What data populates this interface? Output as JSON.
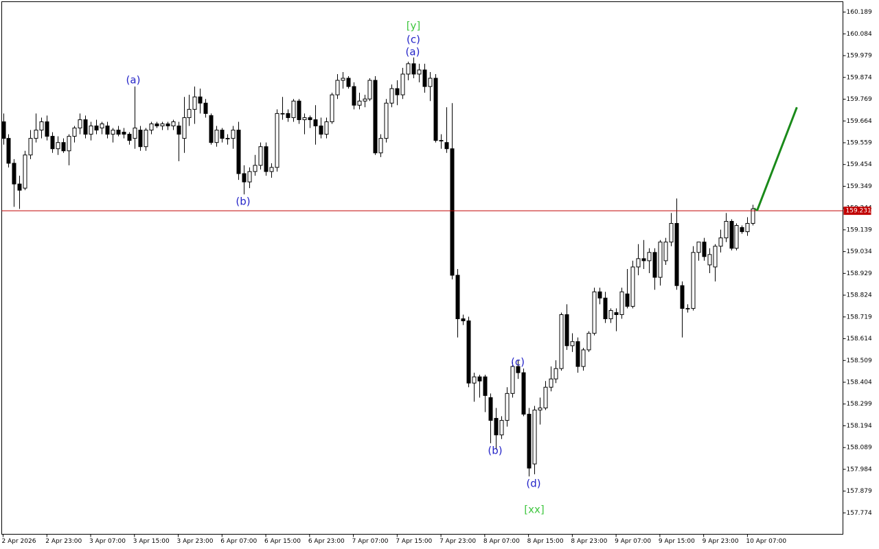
{
  "chart_data": {
    "type": "candlestick",
    "categories": [
      "2 Apr 2026",
      null,
      null,
      null,
      null,
      null,
      null,
      null,
      "2 Apr 23:00",
      null,
      null,
      null,
      null,
      null,
      null,
      null,
      "3 Apr 07:00",
      null,
      null,
      null,
      null,
      null,
      null,
      null,
      "3 Apr 15:00",
      null,
      null,
      null,
      null,
      null,
      null,
      null,
      "3 Apr 23:00",
      null,
      null,
      null,
      null,
      null,
      null,
      null,
      "6 Apr 07:00",
      null,
      null,
      null,
      null,
      null,
      null,
      null,
      "6 Apr 15:00",
      null,
      null,
      null,
      null,
      null,
      null,
      null,
      "6 Apr 23:00",
      null,
      null,
      null,
      null,
      null,
      null,
      null,
      "7 Apr 07:00",
      null,
      null,
      null,
      null,
      null,
      null,
      null,
      "7 Apr 15:00",
      null,
      null,
      null,
      null,
      null,
      null,
      null,
      "7 Apr 23:00",
      null,
      null,
      null,
      null,
      null,
      null,
      null,
      "8 Apr 07:00",
      null,
      null,
      null,
      null,
      null,
      null,
      null,
      "8 Apr 15:00",
      null,
      null,
      null,
      null,
      null,
      null,
      null,
      "8 Apr 23:00",
      null,
      null,
      null,
      null,
      null,
      null,
      null,
      "9 Apr 07:00",
      null,
      null,
      null,
      null,
      null,
      null,
      null,
      "9 Apr 15:00",
      null,
      null,
      null,
      null,
      null,
      null,
      null,
      "9 Apr 23:00",
      null,
      null,
      null,
      null,
      null,
      null,
      null,
      "10 Apr 07:00",
      null
    ],
    "open": [
      159.66,
      159.58,
      159.46,
      159.36,
      159.34,
      159.5,
      159.58,
      159.62,
      159.66,
      159.59,
      159.53,
      159.56,
      159.52,
      159.59,
      159.63,
      159.67,
      159.6,
      159.64,
      159.63,
      159.64,
      159.6,
      159.62,
      159.61,
      159.6,
      159.58,
      159.62,
      159.54,
      159.62,
      159.65,
      159.64,
      159.65,
      159.64,
      159.64,
      159.58,
      159.68,
      159.72,
      159.78,
      159.75,
      159.69,
      159.56,
      159.62,
      159.58,
      159.58,
      159.62,
      159.41,
      159.37,
      159.42,
      159.45,
      159.54,
      159.42,
      159.44,
      159.7,
      159.7,
      159.68,
      159.76,
      159.67,
      159.68,
      159.67,
      159.64,
      159.6,
      159.66,
      159.79,
      159.86,
      159.87,
      159.83,
      159.74,
      159.76,
      159.77,
      159.86,
      159.51,
      159.58,
      159.75,
      159.82,
      159.79,
      159.89,
      159.94,
      159.89,
      159.91,
      159.83,
      159.87,
      159.57,
      159.56,
      159.53,
      158.92,
      158.71,
      158.7,
      158.4,
      158.43,
      158.43,
      158.33,
      158.23,
      158.15,
      158.22,
      158.35,
      158.48,
      158.45,
      158.25,
      158.01,
      158.27,
      158.28,
      158.38,
      158.42,
      158.47,
      158.73,
      158.58,
      158.6,
      158.48,
      158.56,
      158.64,
      158.84,
      158.81,
      158.71,
      158.74,
      158.73,
      158.83,
      158.77,
      158.96,
      159.0,
      158.99,
      159.03,
      158.91,
      158.99,
      159.08,
      159.17,
      158.87,
      158.76,
      158.76,
      159.03,
      159.08,
      158.97,
      158.96,
      159.06,
      159.1,
      159.18,
      159.05,
      159.15,
      159.13,
      159.17
    ],
    "high": [
      159.7,
      159.6,
      159.48,
      159.4,
      159.52,
      159.62,
      159.7,
      159.68,
      159.69,
      159.61,
      159.59,
      159.58,
      159.6,
      159.64,
      159.7,
      159.69,
      159.66,
      159.67,
      159.66,
      159.66,
      159.63,
      159.64,
      159.63,
      159.61,
      159.83,
      159.64,
      159.63,
      159.66,
      159.66,
      159.66,
      159.66,
      159.67,
      159.66,
      159.78,
      159.79,
      159.83,
      159.82,
      159.77,
      159.7,
      159.64,
      159.63,
      159.6,
      159.64,
      159.66,
      159.45,
      159.44,
      159.5,
      159.56,
      159.56,
      159.46,
      159.72,
      159.78,
      159.72,
      159.77,
      159.77,
      159.7,
      159.69,
      159.74,
      159.68,
      159.68,
      159.8,
      159.89,
      159.9,
      159.88,
      159.85,
      159.8,
      159.79,
      159.87,
      159.88,
      159.6,
      159.77,
      159.84,
      159.86,
      159.92,
      159.95,
      159.97,
      159.94,
      159.94,
      159.9,
      159.89,
      159.6,
      159.73,
      159.75,
      158.95,
      158.73,
      158.72,
      158.45,
      158.44,
      158.44,
      158.35,
      158.28,
      158.24,
      158.38,
      158.5,
      158.51,
      158.47,
      158.28,
      158.29,
      158.33,
      158.41,
      158.48,
      158.51,
      158.74,
      158.78,
      158.64,
      158.62,
      158.57,
      158.65,
      158.86,
      158.86,
      158.84,
      158.76,
      158.76,
      158.86,
      158.95,
      158.99,
      159.07,
      159.09,
      159.05,
      159.05,
      159.09,
      159.1,
      159.22,
      159.29,
      158.89,
      158.78,
      159.06,
      159.08,
      159.1,
      159.05,
      159.07,
      159.14,
      159.22,
      159.19,
      159.17,
      159.16,
      159.2,
      159.26
    ],
    "low": [
      159.55,
      159.44,
      159.25,
      159.24,
      159.33,
      159.48,
      159.56,
      159.58,
      159.57,
      159.51,
      159.5,
      159.51,
      159.45,
      159.56,
      159.6,
      159.58,
      159.57,
      159.6,
      159.6,
      159.58,
      159.56,
      159.59,
      159.58,
      159.55,
      159.53,
      159.52,
      159.52,
      159.6,
      159.63,
      159.62,
      159.62,
      159.62,
      159.47,
      159.51,
      159.64,
      159.65,
      159.7,
      159.68,
      159.55,
      159.54,
      159.56,
      159.55,
      159.53,
      159.38,
      159.31,
      159.34,
      159.4,
      159.43,
      159.4,
      159.39,
      159.42,
      159.67,
      159.66,
      159.66,
      159.65,
      159.6,
      159.63,
      159.55,
      159.58,
      159.58,
      159.65,
      159.77,
      159.82,
      159.82,
      159.72,
      159.72,
      159.73,
      159.76,
      159.5,
      159.49,
      159.56,
      159.73,
      159.74,
      159.77,
      159.86,
      159.87,
      159.85,
      159.8,
      159.76,
      159.56,
      159.53,
      159.51,
      158.9,
      158.62,
      158.68,
      158.38,
      158.31,
      158.33,
      158.26,
      158.11,
      158.08,
      158.13,
      158.19,
      158.33,
      158.42,
      158.24,
      157.95,
      157.96,
      158.2,
      158.27,
      158.36,
      158.4,
      158.46,
      158.56,
      158.55,
      158.45,
      158.46,
      158.55,
      158.63,
      158.78,
      158.69,
      158.69,
      158.65,
      158.71,
      158.76,
      158.76,
      158.92,
      158.95,
      158.93,
      158.85,
      158.87,
      158.97,
      159.06,
      158.85,
      158.62,
      158.74,
      158.75,
      158.99,
      158.99,
      158.93,
      158.89,
      159.03,
      159.08,
      159.04,
      159.04,
      159.12,
      159.11,
      159.16
    ],
    "close": [
      159.58,
      159.46,
      159.36,
      159.33,
      159.5,
      159.58,
      159.62,
      159.66,
      159.59,
      159.53,
      159.56,
      159.52,
      159.59,
      159.63,
      159.67,
      159.6,
      159.64,
      159.62,
      159.65,
      159.6,
      159.62,
      159.6,
      159.6,
      159.57,
      159.63,
      159.54,
      159.62,
      159.65,
      159.64,
      159.65,
      159.64,
      159.66,
      159.6,
      159.68,
      159.72,
      159.78,
      159.75,
      159.7,
      159.56,
      159.62,
      159.58,
      159.58,
      159.62,
      159.41,
      159.37,
      159.42,
      159.45,
      159.54,
      159.42,
      159.44,
      159.7,
      159.7,
      159.68,
      159.76,
      159.67,
      159.68,
      159.67,
      159.64,
      159.6,
      159.66,
      159.79,
      159.86,
      159.87,
      159.83,
      159.74,
      159.76,
      159.77,
      159.86,
      159.51,
      159.58,
      159.75,
      159.82,
      159.79,
      159.89,
      159.94,
      159.89,
      159.91,
      159.83,
      159.87,
      159.57,
      159.57,
      159.53,
      158.92,
      158.71,
      158.7,
      158.4,
      158.43,
      158.41,
      158.34,
      158.22,
      158.15,
      158.22,
      158.35,
      158.48,
      158.45,
      158.25,
      157.99,
      158.27,
      158.28,
      158.38,
      158.42,
      158.47,
      158.73,
      158.58,
      158.6,
      158.48,
      158.56,
      158.64,
      158.84,
      158.81,
      158.71,
      158.75,
      158.73,
      158.84,
      158.77,
      158.96,
      159.0,
      158.99,
      159.03,
      158.91,
      159.08,
      159.08,
      159.17,
      158.87,
      158.76,
      158.76,
      159.03,
      159.08,
      159.01,
      159.02,
      159.06,
      159.1,
      159.18,
      159.05,
      159.16,
      159.13,
      159.17,
      159.24
    ],
    "bull_color": "#ffffff",
    "bear_color": "#000000",
    "ylim": [
      157.671,
      160.239
    ],
    "yticks": [
      160.189,
      160.084,
      159.979,
      159.874,
      159.769,
      159.664,
      159.559,
      159.454,
      159.349,
      159.244,
      159.139,
      159.034,
      158.929,
      158.824,
      158.719,
      158.614,
      158.509,
      158.404,
      158.299,
      158.194,
      158.089,
      157.984,
      157.879,
      157.774
    ],
    "current_price": 159.231,
    "current_price_color": "#c00000",
    "projection": {
      "end": 159.73,
      "color": "#1a8a1a"
    },
    "annotations": [
      {
        "text": "(a)",
        "color": "#2424c8"
      },
      {
        "text": "(b)",
        "color": "#2424c8"
      },
      {
        "text": "[y]",
        "color": "#3fc63f"
      },
      {
        "text": "(c)",
        "color": "#2424c8"
      },
      {
        "text": "(a)",
        "color": "#2424c8"
      },
      {
        "text": "(c)",
        "color": "#2424c8"
      },
      {
        "text": "(b)",
        "color": "#2424c8"
      },
      {
        "text": "(d)",
        "color": "#2424c8"
      },
      {
        "text": "[xx]",
        "color": "#3fc63f"
      }
    ]
  }
}
